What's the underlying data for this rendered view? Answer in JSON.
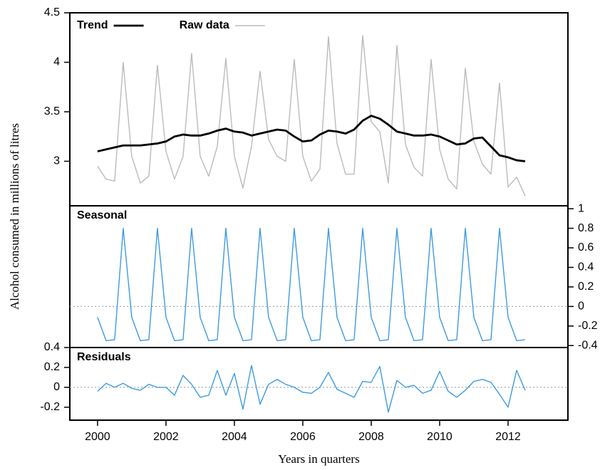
{
  "chart_data": [
    {
      "type": "line",
      "ylabel": "Alcohol consumed in millions of litres",
      "legend": "top-left",
      "yaxis_side": "left",
      "x": [
        2000,
        2000.25,
        2000.5,
        2000.75,
        2001,
        2001.25,
        2001.5,
        2001.75,
        2002,
        2002.25,
        2002.5,
        2002.75,
        2003,
        2003.25,
        2003.5,
        2003.75,
        2004,
        2004.25,
        2004.5,
        2004.75,
        2005,
        2005.25,
        2005.5,
        2005.75,
        2006,
        2006.25,
        2006.5,
        2006.75,
        2007,
        2007.25,
        2007.5,
        2007.75,
        2008,
        2008.25,
        2008.5,
        2008.75,
        2009,
        2009.25,
        2009.5,
        2009.75,
        2010,
        2010.25,
        2010.5,
        2010.75,
        2011,
        2011.25,
        2011.5,
        2011.75,
        2012,
        2012.25,
        2012.5
      ],
      "xlim": [
        1999.19,
        2013.75
      ],
      "ylim": [
        2.55,
        4.5
      ],
      "yticks": [
        3,
        3.5,
        4,
        4.5
      ],
      "series": [
        {
          "name": "Trend",
          "color": "#000000",
          "values": [
            3.1,
            3.12,
            3.14,
            3.16,
            3.16,
            3.16,
            3.17,
            3.18,
            3.2,
            3.25,
            3.27,
            3.26,
            3.26,
            3.28,
            3.31,
            3.33,
            3.3,
            3.29,
            3.26,
            3.28,
            3.3,
            3.32,
            3.31,
            3.25,
            3.2,
            3.21,
            3.27,
            3.31,
            3.3,
            3.28,
            3.32,
            3.41,
            3.46,
            3.43,
            3.37,
            3.3,
            3.28,
            3.26,
            3.26,
            3.27,
            3.25,
            3.21,
            3.17,
            3.18,
            3.23,
            3.24,
            3.15,
            3.06,
            3.04,
            3.01,
            3.0
          ]
        },
        {
          "name": "Raw data",
          "color": "#bbbbbb",
          "values": [
            2.95,
            2.82,
            2.8,
            4.0,
            3.05,
            2.78,
            2.85,
            3.97,
            3.1,
            2.82,
            3.05,
            4.09,
            3.05,
            2.85,
            3.15,
            4.04,
            3.05,
            2.73,
            3.15,
            3.91,
            3.22,
            3.05,
            3.0,
            4.03,
            3.05,
            2.8,
            2.92,
            4.26,
            3.18,
            2.87,
            2.87,
            4.27,
            3.4,
            3.3,
            2.78,
            4.17,
            3.17,
            2.94,
            2.85,
            4.03,
            3.12,
            2.82,
            2.72,
            3.94,
            3.2,
            2.97,
            2.87,
            3.79,
            2.74,
            2.84,
            2.65
          ]
        }
      ]
    },
    {
      "type": "line",
      "title": "Seasonal",
      "yaxis_side": "right",
      "hline": 0,
      "x": [
        2000,
        2000.25,
        2000.5,
        2000.75,
        2001,
        2001.25,
        2001.5,
        2001.75,
        2002,
        2002.25,
        2002.5,
        2002.75,
        2003,
        2003.25,
        2003.5,
        2003.75,
        2004,
        2004.25,
        2004.5,
        2004.75,
        2005,
        2005.25,
        2005.5,
        2005.75,
        2006,
        2006.25,
        2006.5,
        2006.75,
        2007,
        2007.25,
        2007.5,
        2007.75,
        2008,
        2008.25,
        2008.5,
        2008.75,
        2009,
        2009.25,
        2009.5,
        2009.75,
        2010,
        2010.25,
        2010.5,
        2010.75,
        2011,
        2011.25,
        2011.5,
        2011.75,
        2012,
        2012.25,
        2012.5
      ],
      "xlim": [
        1999.19,
        2013.75
      ],
      "ylim": [
        -0.42,
        1.03
      ],
      "yticks": [
        -0.4,
        -0.2,
        0,
        0.2,
        0.4,
        0.6,
        0.8,
        1
      ],
      "series": [
        {
          "color": "#3d9be0",
          "values": [
            -0.11,
            -0.35,
            -0.34,
            0.8,
            -0.11,
            -0.35,
            -0.34,
            0.8,
            -0.11,
            -0.35,
            -0.34,
            0.8,
            -0.11,
            -0.35,
            -0.34,
            0.8,
            -0.11,
            -0.35,
            -0.34,
            0.8,
            -0.11,
            -0.35,
            -0.34,
            0.8,
            -0.11,
            -0.35,
            -0.34,
            0.8,
            -0.11,
            -0.35,
            -0.34,
            0.8,
            -0.11,
            -0.35,
            -0.34,
            0.8,
            -0.11,
            -0.35,
            -0.34,
            0.8,
            -0.11,
            -0.35,
            -0.34,
            0.8,
            -0.11,
            -0.35,
            -0.34,
            0.8,
            -0.11,
            -0.35,
            -0.34
          ]
        }
      ]
    },
    {
      "type": "line",
      "title": "Residuals",
      "yaxis_side": "left",
      "hline": 0,
      "xlabel": "Years in quarters",
      "x": [
        2000,
        2000.25,
        2000.5,
        2000.75,
        2001,
        2001.25,
        2001.5,
        2001.75,
        2002,
        2002.25,
        2002.5,
        2002.75,
        2003,
        2003.25,
        2003.5,
        2003.75,
        2004,
        2004.25,
        2004.5,
        2004.75,
        2005,
        2005.25,
        2005.5,
        2005.75,
        2006,
        2006.25,
        2006.5,
        2006.75,
        2007,
        2007.25,
        2007.5,
        2007.75,
        2008,
        2008.25,
        2008.5,
        2008.75,
        2009,
        2009.25,
        2009.5,
        2009.75,
        2010,
        2010.25,
        2010.5,
        2010.75,
        2011,
        2011.25,
        2011.5,
        2011.75,
        2012,
        2012.25,
        2012.5
      ],
      "xlim": [
        1999.19,
        2013.75
      ],
      "ylim": [
        -0.33,
        0.4
      ],
      "yticks": [
        -0.2,
        0,
        0.2,
        0.4
      ],
      "xticks": [
        2000,
        2002,
        2004,
        2006,
        2008,
        2010,
        2012
      ],
      "series": [
        {
          "color": "#3d9be0",
          "values": [
            -0.04,
            0.04,
            0.0,
            0.04,
            -0.01,
            -0.03,
            0.03,
            0.0,
            0.0,
            -0.08,
            0.12,
            0.03,
            -0.1,
            -0.08,
            0.17,
            -0.08,
            0.14,
            -0.22,
            0.22,
            -0.17,
            0.03,
            0.08,
            0.03,
            0.0,
            -0.05,
            -0.06,
            0.0,
            0.15,
            -0.02,
            -0.06,
            -0.1,
            0.06,
            0.05,
            0.21,
            -0.25,
            0.07,
            0.0,
            0.02,
            -0.06,
            -0.03,
            0.16,
            -0.04,
            -0.1,
            -0.03,
            0.06,
            0.08,
            0.05,
            -0.07,
            -0.2,
            0.17,
            -0.03
          ]
        }
      ]
    }
  ]
}
